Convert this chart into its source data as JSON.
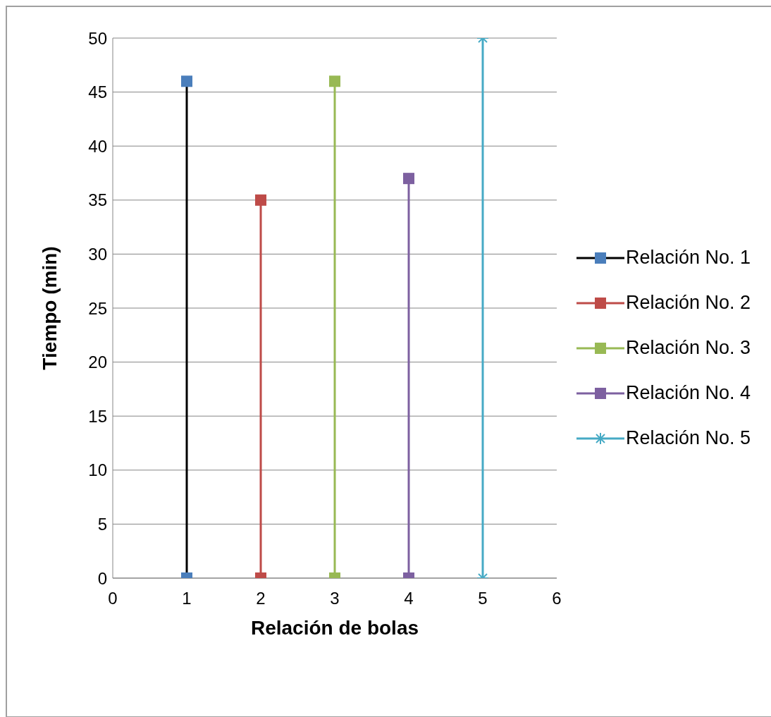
{
  "chart_data": {
    "type": "line",
    "xlabel": "Relación de bolas",
    "ylabel": "Tiempo (min)",
    "xlim": [
      0,
      6
    ],
    "xticks": [
      0,
      1,
      2,
      3,
      4,
      5,
      6
    ],
    "ylim": [
      0,
      50
    ],
    "yticks": [
      0,
      5,
      10,
      15,
      20,
      25,
      30,
      35,
      40,
      45,
      50
    ],
    "grid": "y",
    "legend": "right",
    "marker": "square",
    "series": [
      {
        "name": "Relación No. 1",
        "color": "#000000",
        "colors": [
          "#4a7ebb",
          "#4a7ebb"
        ],
        "x": [
          1,
          1
        ],
        "values": [
          0,
          46
        ]
      },
      {
        "name": "Relación No. 2",
        "color": "#be4b48",
        "x": [
          2,
          2
        ],
        "values": [
          0,
          35
        ]
      },
      {
        "name": "Relación No. 3",
        "color": "#98b954",
        "x": [
          3,
          3
        ],
        "values": [
          0,
          46
        ]
      },
      {
        "name": "Relación No. 4",
        "color": "#7d60a0",
        "x": [
          4,
          4
        ],
        "values": [
          0,
          37
        ]
      },
      {
        "name": "Relación No. 5",
        "color": "#46aac5",
        "marker": "cross",
        "x": [
          5,
          5
        ],
        "values": [
          0,
          50
        ]
      }
    ]
  }
}
